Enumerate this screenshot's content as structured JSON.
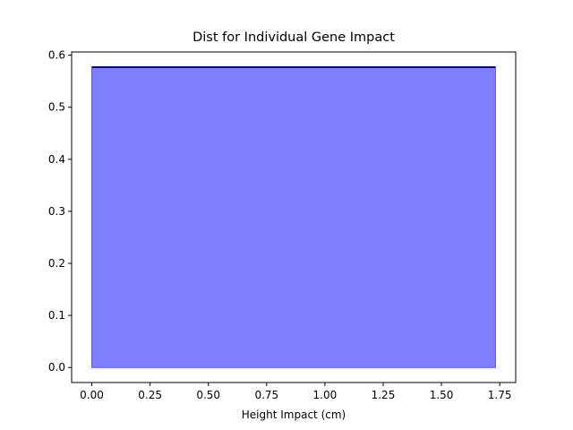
{
  "chart_data": {
    "type": "area",
    "title": "Dist for Individual Gene Impact",
    "xlabel": "Height Impact (cm)",
    "ylabel": "",
    "x": [
      0.0,
      1.732
    ],
    "y": [
      0.577,
      0.577
    ],
    "fill_baseline": 0,
    "xlim": [
      -0.0866,
      1.8186
    ],
    "ylim": [
      -0.0289,
      0.6062
    ],
    "xticks": [
      0.0,
      0.25,
      0.5,
      0.75,
      1.0,
      1.25,
      1.5,
      1.75
    ],
    "xtick_labels": [
      "0.00",
      "0.25",
      "0.50",
      "0.75",
      "1.00",
      "1.25",
      "1.50",
      "1.75"
    ],
    "yticks": [
      0.0,
      0.1,
      0.2,
      0.3,
      0.4,
      0.5,
      0.6
    ],
    "ytick_labels": [
      "0.0",
      "0.1",
      "0.2",
      "0.3",
      "0.4",
      "0.5",
      "0.6"
    ],
    "grid": false,
    "colors": {
      "line": "#0000aa",
      "fill": "#8080ff",
      "fill_edge": "#5555ee",
      "axes": "#000000"
    }
  }
}
